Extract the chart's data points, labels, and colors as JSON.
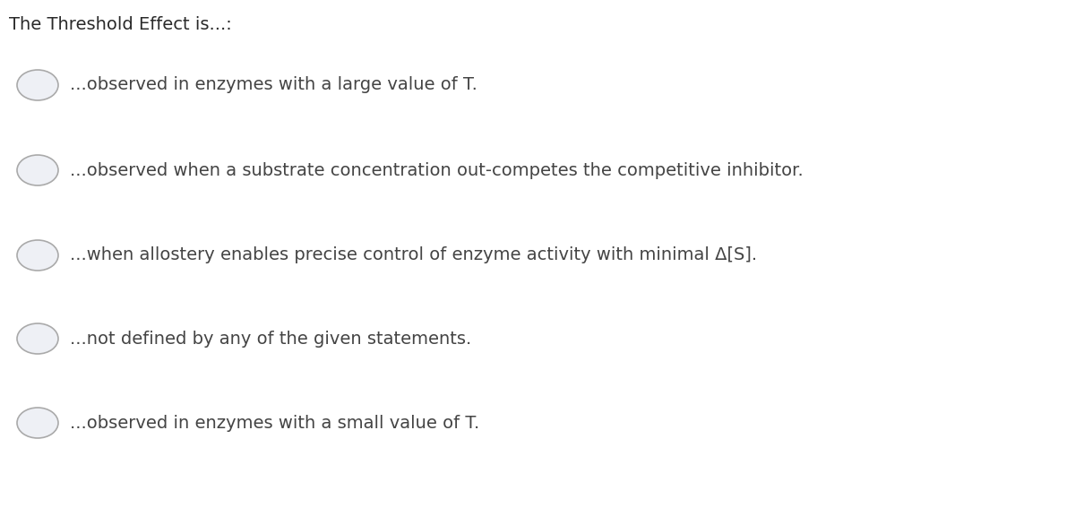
{
  "title": "The Threshold Effect is...:",
  "title_fontsize": 14,
  "title_color": "#2a2a2a",
  "background_color": "#ffffff",
  "options": [
    "...observed in enzymes with a large value of T.",
    "...observed when a substrate concentration out-competes the competitive inhibitor.",
    "...when allostery enables precise control of enzyme activity with minimal Δ[S].",
    "...not defined by any of the given statements.",
    "...observed in enzymes with a small value of T."
  ],
  "circle_edgecolor": "#aaaaaa",
  "circle_facecolor": "#eef0f5",
  "circle_linewidth": 1.2,
  "text_fontsize": 14,
  "text_color": "#444444"
}
